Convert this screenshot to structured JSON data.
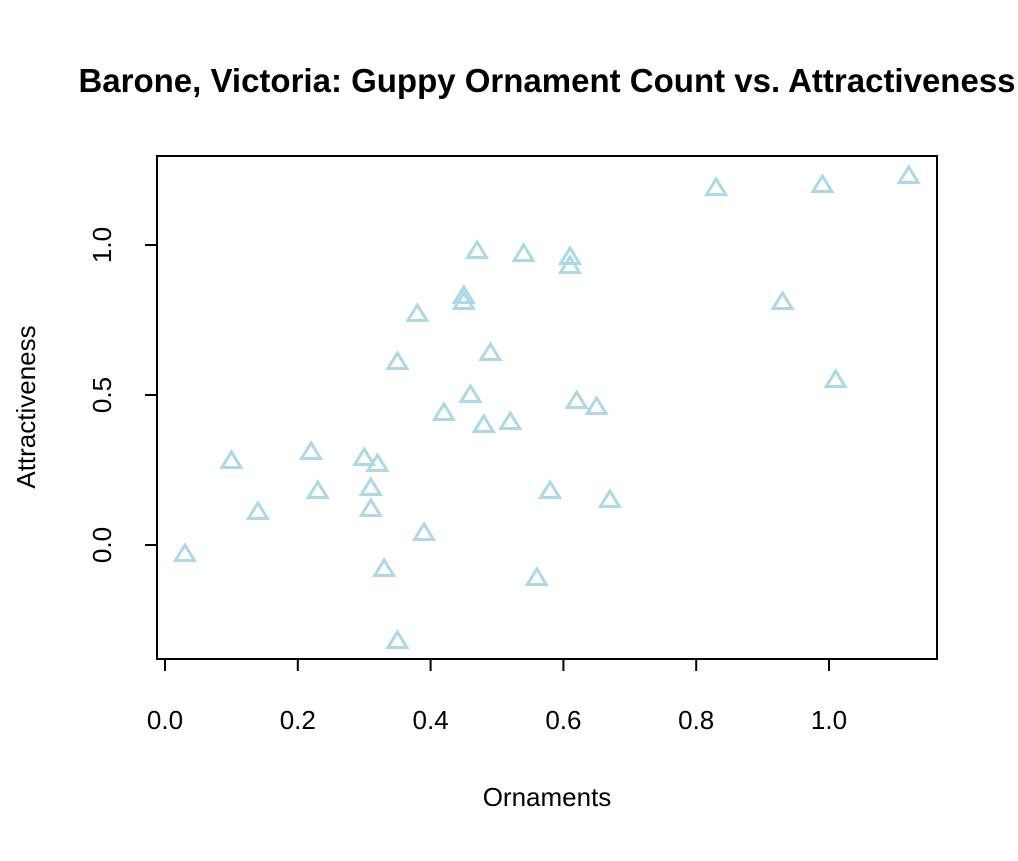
{
  "chart_data": {
    "type": "scatter",
    "title": "Barone, Victoria: Guppy Ornament Count vs. Attractiveness",
    "xlabel": "Ornaments",
    "ylabel": "Attractiveness",
    "xlim": [
      0.0,
      1.1
    ],
    "ylim": [
      -0.3,
      1.25
    ],
    "x_ticks": [
      0.0,
      0.2,
      0.4,
      0.6,
      0.8,
      1.0
    ],
    "x_tick_labels": [
      "0.0",
      "0.2",
      "0.4",
      "0.6",
      "0.8",
      "1.0"
    ],
    "y_ticks": [
      0.0,
      0.5,
      1.0
    ],
    "y_tick_labels": [
      "0.0",
      "0.5",
      "1.0"
    ],
    "grid": false,
    "legend": "none",
    "marker": "open-triangle",
    "point_color": "#add8e6",
    "points": [
      {
        "x": 0.03,
        "y": -0.03
      },
      {
        "x": 0.1,
        "y": 0.28
      },
      {
        "x": 0.14,
        "y": 0.11
      },
      {
        "x": 0.22,
        "y": 0.31
      },
      {
        "x": 0.23,
        "y": 0.18
      },
      {
        "x": 0.3,
        "y": 0.29
      },
      {
        "x": 0.31,
        "y": 0.19
      },
      {
        "x": 0.31,
        "y": 0.12
      },
      {
        "x": 0.32,
        "y": 0.27
      },
      {
        "x": 0.33,
        "y": -0.08
      },
      {
        "x": 0.35,
        "y": 0.61
      },
      {
        "x": 0.35,
        "y": -0.32
      },
      {
        "x": 0.38,
        "y": 0.77
      },
      {
        "x": 0.39,
        "y": 0.04
      },
      {
        "x": 0.42,
        "y": 0.44
      },
      {
        "x": 0.45,
        "y": 0.83
      },
      {
        "x": 0.45,
        "y": 0.81
      },
      {
        "x": 0.46,
        "y": 0.5
      },
      {
        "x": 0.47,
        "y": 0.98
      },
      {
        "x": 0.48,
        "y": 0.4
      },
      {
        "x": 0.49,
        "y": 0.64
      },
      {
        "x": 0.52,
        "y": 0.41
      },
      {
        "x": 0.54,
        "y": 0.97
      },
      {
        "x": 0.56,
        "y": -0.11
      },
      {
        "x": 0.58,
        "y": 0.18
      },
      {
        "x": 0.61,
        "y": 0.96
      },
      {
        "x": 0.61,
        "y": 0.93
      },
      {
        "x": 0.62,
        "y": 0.48
      },
      {
        "x": 0.65,
        "y": 0.46
      },
      {
        "x": 0.67,
        "y": 0.15
      },
      {
        "x": 0.83,
        "y": 1.19
      },
      {
        "x": 0.93,
        "y": 0.81
      },
      {
        "x": 0.99,
        "y": 1.2
      },
      {
        "x": 1.01,
        "y": 0.55
      },
      {
        "x": 1.12,
        "y": 1.23
      }
    ]
  }
}
